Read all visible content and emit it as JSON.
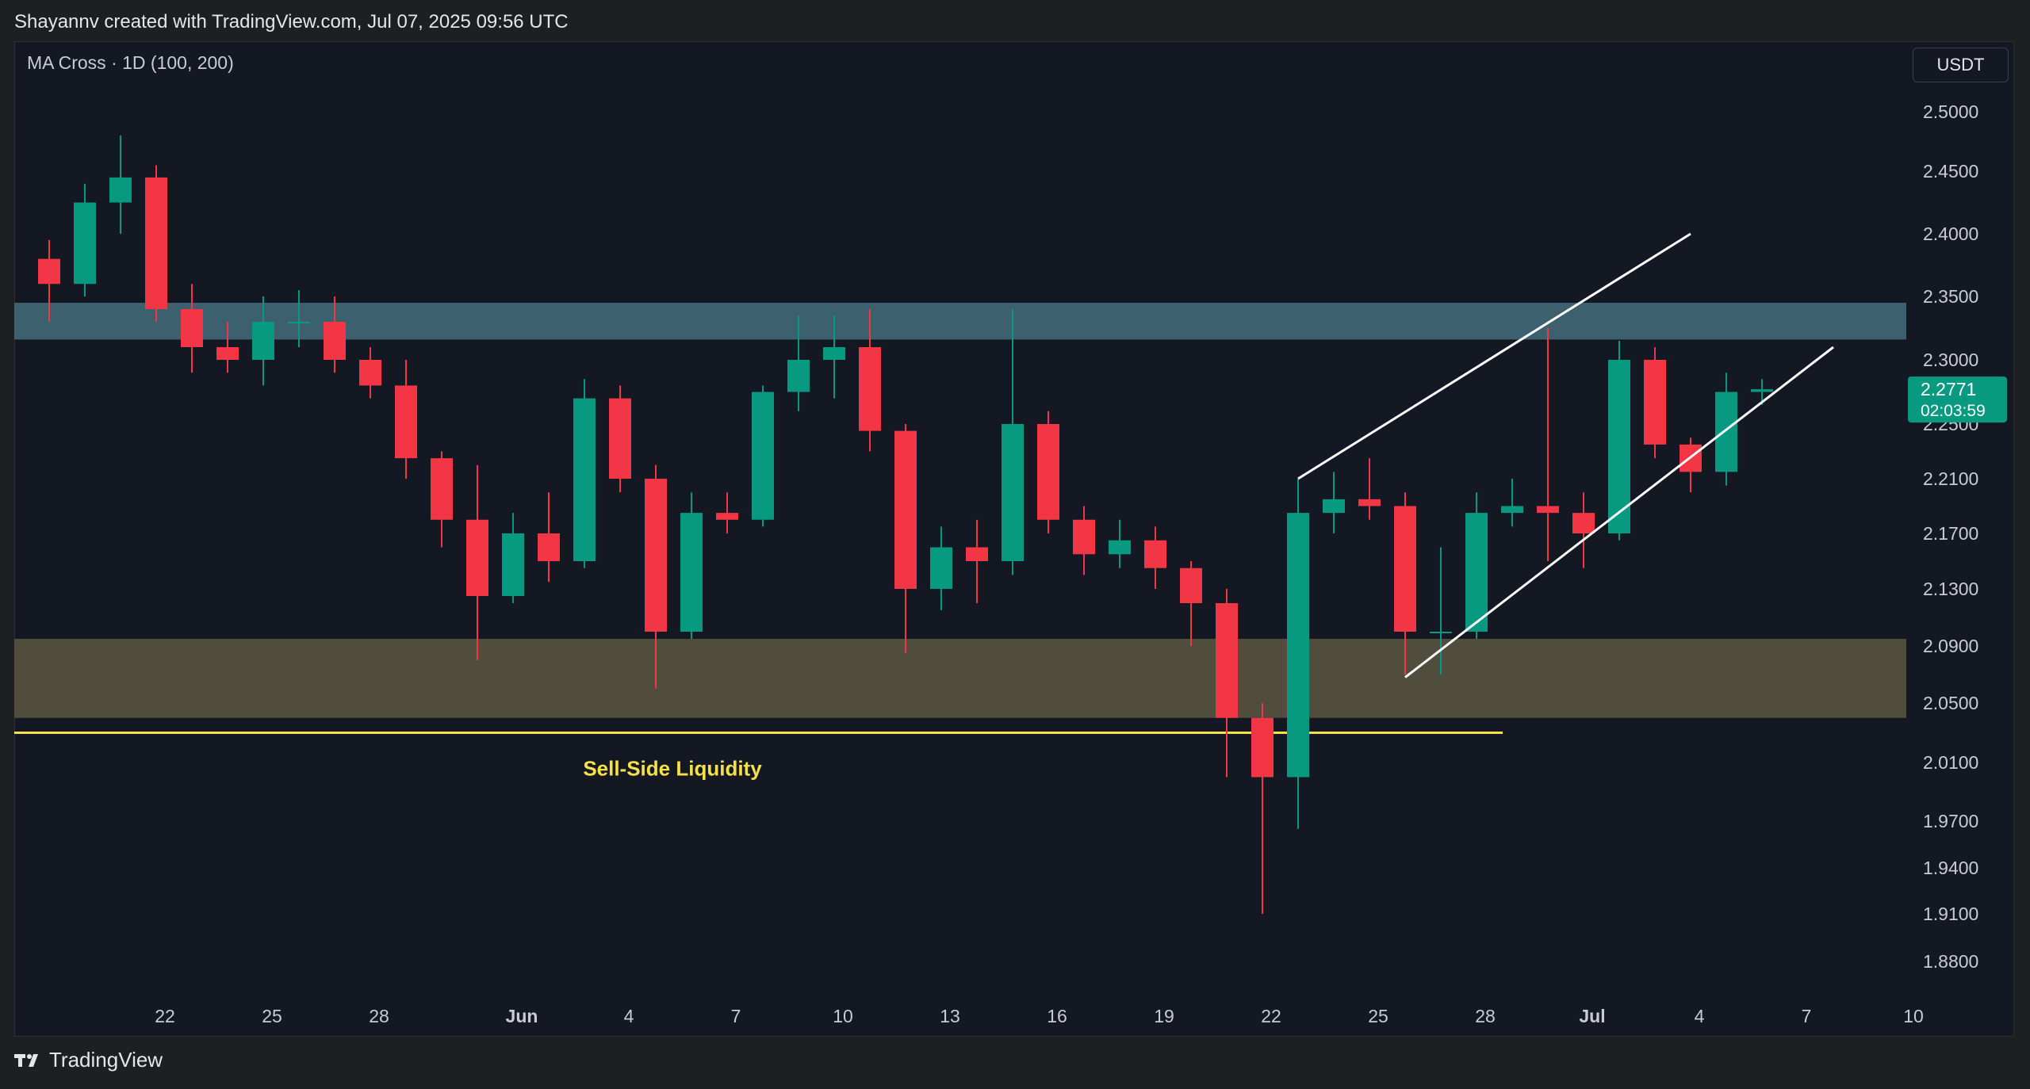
{
  "credit": "Shayannv created with TradingView.com, Jul 07, 2025 09:56 UTC",
  "indicator_label": "MA Cross · 1D (100, 200)",
  "currency": "USDT",
  "footer_brand": "TradingView",
  "price_tag": {
    "price": "2.2771",
    "countdown": "02:03:59",
    "bg": "#089981"
  },
  "colors": {
    "up": "#089981",
    "down": "#f23645",
    "supply_zone": "#436d7b",
    "demand_zone": "#57533f",
    "liquidity_line": "#f5e04a",
    "channel": "#ffffff"
  },
  "chart_data": {
    "type": "candlestick",
    "symbol_quote": "USDT",
    "timeframe": "1D",
    "y_ticks": [
      2.5,
      2.45,
      2.4,
      2.35,
      2.3,
      2.25,
      2.21,
      2.17,
      2.13,
      2.09,
      2.05,
      2.01,
      1.97,
      1.94,
      1.91,
      1.88
    ],
    "y_tick_labels": [
      "2.5000",
      "2.4500",
      "2.4000",
      "2.3500",
      "2.3000",
      "2.2500",
      "2.2100",
      "2.1700",
      "2.1300",
      "2.0900",
      "2.0500",
      "2.0100",
      "1.9700",
      "1.9400",
      "1.9100",
      "1.8800"
    ],
    "x_tick_labels": [
      "22",
      "25",
      "28",
      "Jun",
      "4",
      "7",
      "10",
      "13",
      "16",
      "19",
      "22",
      "25",
      "28",
      "Jul",
      "4",
      "7",
      "10"
    ],
    "current_price": 2.2771,
    "zones": [
      {
        "name": "supply",
        "low": 2.316,
        "high": 2.345
      },
      {
        "name": "demand",
        "low": 2.04,
        "high": 2.095
      }
    ],
    "lines": [
      {
        "name": "Sell-Side Liquidity",
        "price": 2.03,
        "label": "Sell-Side Liquidity"
      }
    ],
    "channel": {
      "upper": {
        "start": [
          "2025-06-24",
          2.21
        ],
        "end": [
          "2025-07-05",
          2.4
        ]
      },
      "lower": {
        "start": [
          "2025-06-27",
          2.068
        ],
        "end": [
          "2025-07-09",
          2.31
        ]
      }
    },
    "candles": [
      {
        "t": "2025-05-20",
        "o": 2.38,
        "h": 2.395,
        "l": 2.33,
        "c": 2.36
      },
      {
        "t": "2025-05-21",
        "o": 2.36,
        "h": 2.44,
        "l": 2.35,
        "c": 2.425
      },
      {
        "t": "2025-05-22",
        "o": 2.425,
        "h": 2.48,
        "l": 2.4,
        "c": 2.445
      },
      {
        "t": "2025-05-23",
        "o": 2.445,
        "h": 2.455,
        "l": 2.33,
        "c": 2.34
      },
      {
        "t": "2025-05-24",
        "o": 2.34,
        "h": 2.36,
        "l": 2.29,
        "c": 2.31
      },
      {
        "t": "2025-05-25",
        "o": 2.31,
        "h": 2.33,
        "l": 2.29,
        "c": 2.3
      },
      {
        "t": "2025-05-26",
        "o": 2.3,
        "h": 2.35,
        "l": 2.28,
        "c": 2.33
      },
      {
        "t": "2025-05-27",
        "o": 2.33,
        "h": 2.355,
        "l": 2.31,
        "c": 2.33
      },
      {
        "t": "2025-05-28",
        "o": 2.33,
        "h": 2.35,
        "l": 2.29,
        "c": 2.3
      },
      {
        "t": "2025-05-29",
        "o": 2.3,
        "h": 2.31,
        "l": 2.27,
        "c": 2.28
      },
      {
        "t": "2025-05-30",
        "o": 2.28,
        "h": 2.3,
        "l": 2.21,
        "c": 2.225
      },
      {
        "t": "2025-05-31",
        "o": 2.225,
        "h": 2.23,
        "l": 2.16,
        "c": 2.18
      },
      {
        "t": "2025-06-01",
        "o": 2.18,
        "h": 2.22,
        "l": 2.08,
        "c": 2.125
      },
      {
        "t": "2025-06-02",
        "o": 2.125,
        "h": 2.185,
        "l": 2.12,
        "c": 2.17
      },
      {
        "t": "2025-06-03",
        "o": 2.17,
        "h": 2.2,
        "l": 2.135,
        "c": 2.15
      },
      {
        "t": "2025-06-04",
        "o": 2.15,
        "h": 2.285,
        "l": 2.145,
        "c": 2.27
      },
      {
        "t": "2025-06-05",
        "o": 2.27,
        "h": 2.28,
        "l": 2.2,
        "c": 2.21
      },
      {
        "t": "2025-06-06",
        "o": 2.21,
        "h": 2.22,
        "l": 2.06,
        "c": 2.1
      },
      {
        "t": "2025-06-07",
        "o": 2.1,
        "h": 2.2,
        "l": 2.095,
        "c": 2.185
      },
      {
        "t": "2025-06-08",
        "o": 2.185,
        "h": 2.2,
        "l": 2.17,
        "c": 2.18
      },
      {
        "t": "2025-06-09",
        "o": 2.18,
        "h": 2.28,
        "l": 2.175,
        "c": 2.275
      },
      {
        "t": "2025-06-10",
        "o": 2.275,
        "h": 2.335,
        "l": 2.26,
        "c": 2.3
      },
      {
        "t": "2025-06-11",
        "o": 2.3,
        "h": 2.335,
        "l": 2.27,
        "c": 2.31
      },
      {
        "t": "2025-06-12",
        "o": 2.31,
        "h": 2.34,
        "l": 2.23,
        "c": 2.245
      },
      {
        "t": "2025-06-13",
        "o": 2.245,
        "h": 2.25,
        "l": 2.085,
        "c": 2.13
      },
      {
        "t": "2025-06-14",
        "o": 2.13,
        "h": 2.175,
        "l": 2.115,
        "c": 2.16
      },
      {
        "t": "2025-06-15",
        "o": 2.16,
        "h": 2.18,
        "l": 2.12,
        "c": 2.15
      },
      {
        "t": "2025-06-16",
        "o": 2.15,
        "h": 2.34,
        "l": 2.14,
        "c": 2.25
      },
      {
        "t": "2025-06-17",
        "o": 2.25,
        "h": 2.26,
        "l": 2.17,
        "c": 2.18
      },
      {
        "t": "2025-06-18",
        "o": 2.18,
        "h": 2.19,
        "l": 2.14,
        "c": 2.155
      },
      {
        "t": "2025-06-19",
        "o": 2.155,
        "h": 2.18,
        "l": 2.145,
        "c": 2.165
      },
      {
        "t": "2025-06-20",
        "o": 2.165,
        "h": 2.175,
        "l": 2.13,
        "c": 2.145
      },
      {
        "t": "2025-06-21",
        "o": 2.145,
        "h": 2.15,
        "l": 2.09,
        "c": 2.12
      },
      {
        "t": "2025-06-22",
        "o": 2.12,
        "h": 2.13,
        "l": 2.0,
        "c": 2.04
      },
      {
        "t": "2025-06-23",
        "o": 2.04,
        "h": 2.05,
        "l": 1.91,
        "c": 2.0
      },
      {
        "t": "2025-06-24",
        "o": 2.0,
        "h": 2.21,
        "l": 1.965,
        "c": 2.185
      },
      {
        "t": "2025-06-25",
        "o": 2.185,
        "h": 2.215,
        "l": 2.17,
        "c": 2.195
      },
      {
        "t": "2025-06-26",
        "o": 2.195,
        "h": 2.225,
        "l": 2.18,
        "c": 2.19
      },
      {
        "t": "2025-06-27",
        "o": 2.19,
        "h": 2.2,
        "l": 2.07,
        "c": 2.1
      },
      {
        "t": "2025-06-28",
        "o": 2.1,
        "h": 2.16,
        "l": 2.07,
        "c": 2.1
      },
      {
        "t": "2025-06-29",
        "o": 2.1,
        "h": 2.2,
        "l": 2.095,
        "c": 2.185
      },
      {
        "t": "2025-06-30",
        "o": 2.185,
        "h": 2.21,
        "l": 2.175,
        "c": 2.19
      },
      {
        "t": "2025-07-01",
        "o": 2.19,
        "h": 2.325,
        "l": 2.15,
        "c": 2.185
      },
      {
        "t": "2025-07-02",
        "o": 2.185,
        "h": 2.2,
        "l": 2.145,
        "c": 2.17
      },
      {
        "t": "2025-07-03",
        "o": 2.17,
        "h": 2.315,
        "l": 2.165,
        "c": 2.3
      },
      {
        "t": "2025-07-04",
        "o": 2.3,
        "h": 2.31,
        "l": 2.225,
        "c": 2.235
      },
      {
        "t": "2025-07-05",
        "o": 2.235,
        "h": 2.24,
        "l": 2.2,
        "c": 2.215
      },
      {
        "t": "2025-07-06",
        "o": 2.215,
        "h": 2.29,
        "l": 2.205,
        "c": 2.275
      },
      {
        "t": "2025-07-07",
        "o": 2.275,
        "h": 2.285,
        "l": 2.265,
        "c": 2.2771
      }
    ]
  }
}
